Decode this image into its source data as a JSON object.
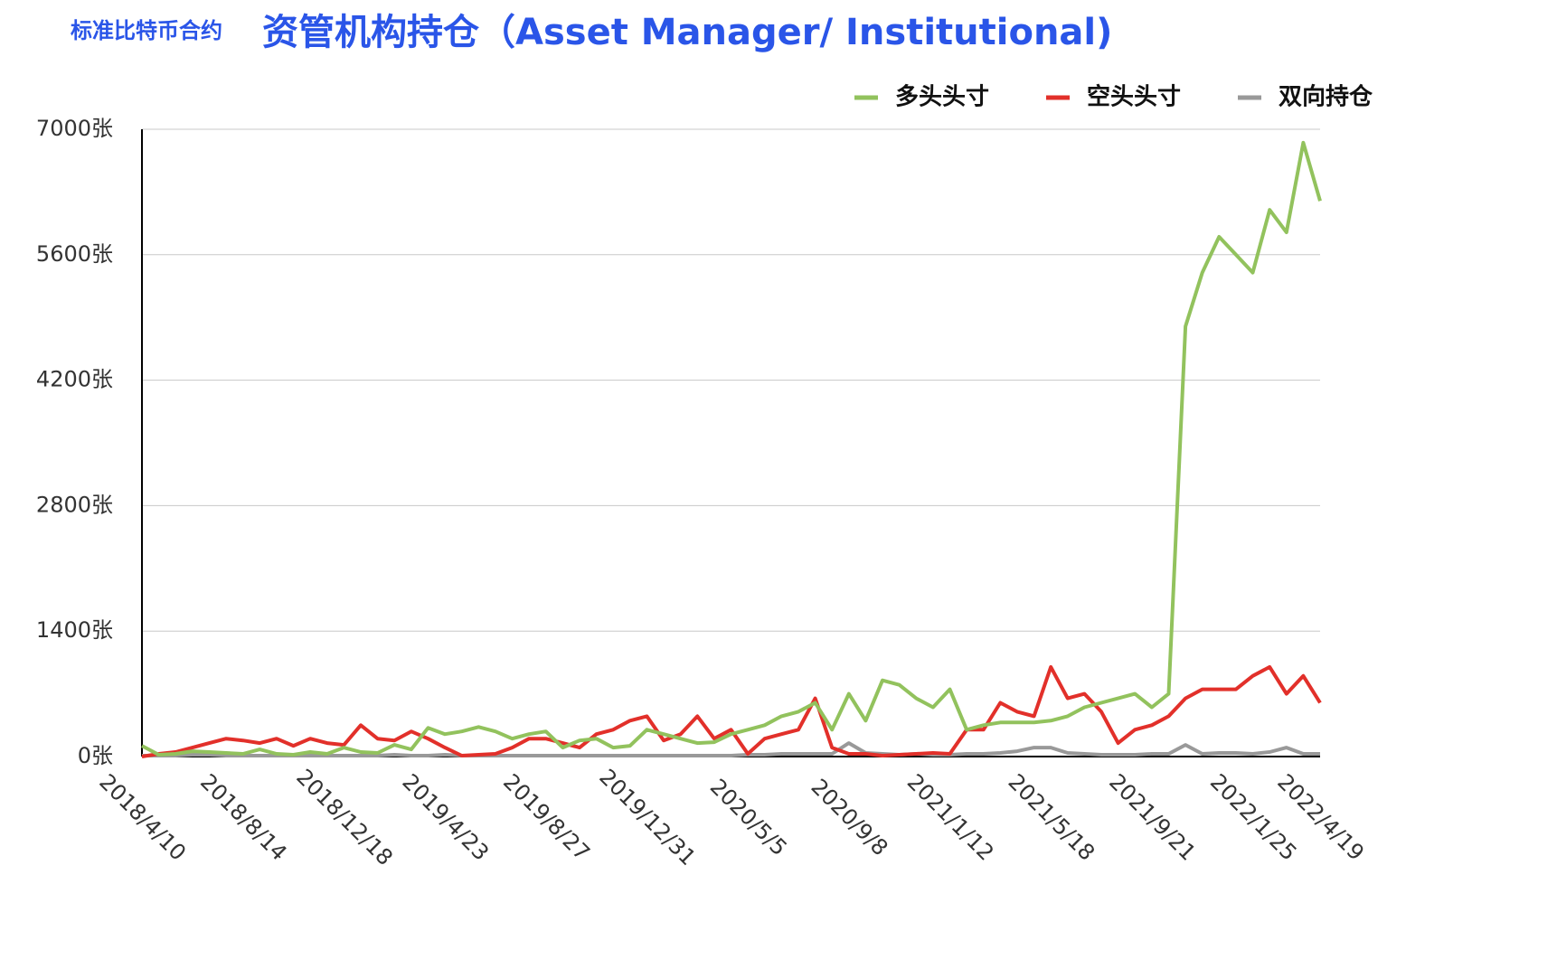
{
  "chart_data": {
    "type": "line",
    "subtitle": "标准比特币合约",
    "title": "资管机构持仓（Asset Manager/ Institutional)",
    "x": [
      "2018/4/10",
      "2018/5/1",
      "2018/5/22",
      "2018/6/12",
      "2018/7/3",
      "2018/7/24",
      "2018/8/14",
      "2018/9/4",
      "2018/9/25",
      "2018/10/16",
      "2018/11/6",
      "2018/11/27",
      "2018/12/18",
      "2019/1/8",
      "2019/1/29",
      "2019/2/19",
      "2019/3/12",
      "2019/4/2",
      "2019/4/23",
      "2019/5/14",
      "2019/6/4",
      "2019/6/25",
      "2019/7/16",
      "2019/8/6",
      "2019/8/27",
      "2019/9/17",
      "2019/10/8",
      "2019/10/29",
      "2019/11/19",
      "2019/12/10",
      "2019/12/31",
      "2020/1/21",
      "2020/2/11",
      "2020/3/3",
      "2020/3/24",
      "2020/4/14",
      "2020/5/5",
      "2020/5/26",
      "2020/6/16",
      "2020/7/7",
      "2020/7/28",
      "2020/8/18",
      "2020/9/8",
      "2020/9/29",
      "2020/10/20",
      "2020/11/10",
      "2020/12/1",
      "2020/12/22",
      "2021/1/12",
      "2021/2/2",
      "2021/2/23",
      "2021/3/16",
      "2021/4/6",
      "2021/4/27",
      "2021/5/18",
      "2021/6/8",
      "2021/6/29",
      "2021/7/20",
      "2021/8/10",
      "2021/8/31",
      "2021/9/21",
      "2021/10/12",
      "2021/11/2",
      "2021/11/23",
      "2021/12/14",
      "2022/1/4",
      "2022/1/25",
      "2022/2/15",
      "2022/3/8",
      "2022/3/29",
      "2022/4/19"
    ],
    "xlim": [
      "2018/4/10",
      "2022/4/19"
    ],
    "xticks": [
      "2018/4/10",
      "2018/8/14",
      "2018/12/18",
      "2019/4/23",
      "2019/8/27",
      "2019/12/31",
      "2020/5/5",
      "2020/9/8",
      "2021/1/12",
      "2021/5/18",
      "2021/9/21",
      "2022/1/25",
      "2022/4/19"
    ],
    "ylim": [
      0,
      7000
    ],
    "yticks": [
      {
        "value": 0,
        "label": "0张"
      },
      {
        "value": 1400,
        "label": "1400张"
      },
      {
        "value": 2800,
        "label": "2800张"
      },
      {
        "value": 4200,
        "label": "4200张"
      },
      {
        "value": 5600,
        "label": "5600张"
      },
      {
        "value": 7000,
        "label": "7000张"
      }
    ],
    "grid": true,
    "legend": "top-right",
    "series": [
      {
        "name": "多头头寸",
        "color": "#92c25d",
        "values": [
          120,
          20,
          30,
          60,
          50,
          40,
          30,
          80,
          30,
          20,
          50,
          30,
          100,
          50,
          40,
          130,
          80,
          320,
          250,
          280,
          330,
          280,
          200,
          250,
          280,
          100,
          180,
          200,
          100,
          120,
          300,
          250,
          200,
          150,
          160,
          250,
          300,
          350,
          450,
          500,
          600,
          300,
          700,
          400,
          850,
          800,
          650,
          550,
          750,
          300,
          350,
          380,
          380,
          380,
          400,
          450,
          550,
          600,
          650,
          700,
          550,
          700,
          4800,
          5400,
          5800,
          5600,
          5400,
          6100,
          5850,
          6850,
          6200
        ]
      },
      {
        "name": "空头头寸",
        "color": "#e2302a",
        "values": [
          0,
          30,
          50,
          100,
          150,
          200,
          180,
          150,
          200,
          120,
          200,
          150,
          130,
          350,
          200,
          180,
          280,
          200,
          100,
          10,
          20,
          30,
          100,
          200,
          200,
          150,
          100,
          250,
          300,
          400,
          450,
          180,
          250,
          450,
          200,
          300,
          30,
          200,
          250,
          300,
          650,
          100,
          30,
          30,
          10,
          20,
          30,
          40,
          30,
          300,
          300,
          600,
          500,
          450,
          1000,
          650,
          700,
          500,
          150,
          300,
          350,
          450,
          650,
          750,
          750,
          750,
          900,
          1000,
          700,
          900,
          600
        ]
      },
      {
        "name": "双向持仓",
        "color": "#999999",
        "values": [
          10,
          10,
          10,
          20,
          20,
          10,
          10,
          10,
          10,
          10,
          10,
          10,
          10,
          10,
          10,
          20,
          10,
          10,
          20,
          10,
          10,
          10,
          10,
          10,
          10,
          10,
          10,
          10,
          10,
          10,
          10,
          10,
          10,
          10,
          10,
          10,
          20,
          20,
          30,
          30,
          30,
          30,
          150,
          40,
          30,
          20,
          30,
          20,
          20,
          30,
          30,
          40,
          60,
          100,
          100,
          40,
          30,
          20,
          20,
          20,
          30,
          30,
          130,
          30,
          40,
          40,
          30,
          50,
          100,
          30,
          30
        ]
      }
    ]
  }
}
